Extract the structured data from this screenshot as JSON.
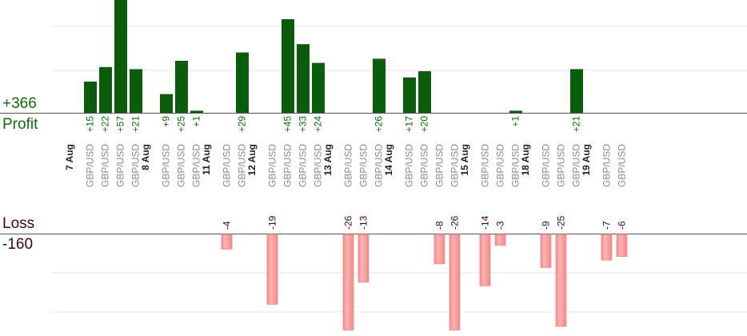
{
  "summary": {
    "profit_total": "+366",
    "profit_label": "Profit",
    "loss_label": "Loss",
    "loss_total": "-160"
  },
  "colors": {
    "profit_bar": "#0b5c0b",
    "profit_text": "#0d6b0d",
    "loss_bar": "#ffb3b3",
    "loss_bar_edge": "#f08a8a",
    "grid": "#e6e6e6",
    "axis": "#555555"
  },
  "chart_data": {
    "type": "bar",
    "unit_label": "GBP/USD",
    "days": [
      {
        "date": "7 Aug",
        "trades": [
          15,
          22,
          57,
          21
        ]
      },
      {
        "date": "8 Aug",
        "trades": [
          9,
          25,
          1
        ]
      },
      {
        "date": "11 Aug",
        "trades": [
          -4,
          29
        ]
      },
      {
        "date": "12 Aug",
        "trades": [
          -19,
          45,
          33,
          24
        ]
      },
      {
        "date": "13 Aug",
        "trades": [
          -26,
          -13,
          26
        ]
      },
      {
        "date": "14 Aug",
        "trades": [
          17,
          20,
          -8,
          -26
        ]
      },
      {
        "date": "15 Aug",
        "trades": [
          -14,
          -3,
          1
        ]
      },
      {
        "date": "18 Aug",
        "trades": [
          -9,
          -25,
          21
        ]
      },
      {
        "date": "19 Aug",
        "trades": [
          -7,
          -6
        ]
      }
    ]
  }
}
